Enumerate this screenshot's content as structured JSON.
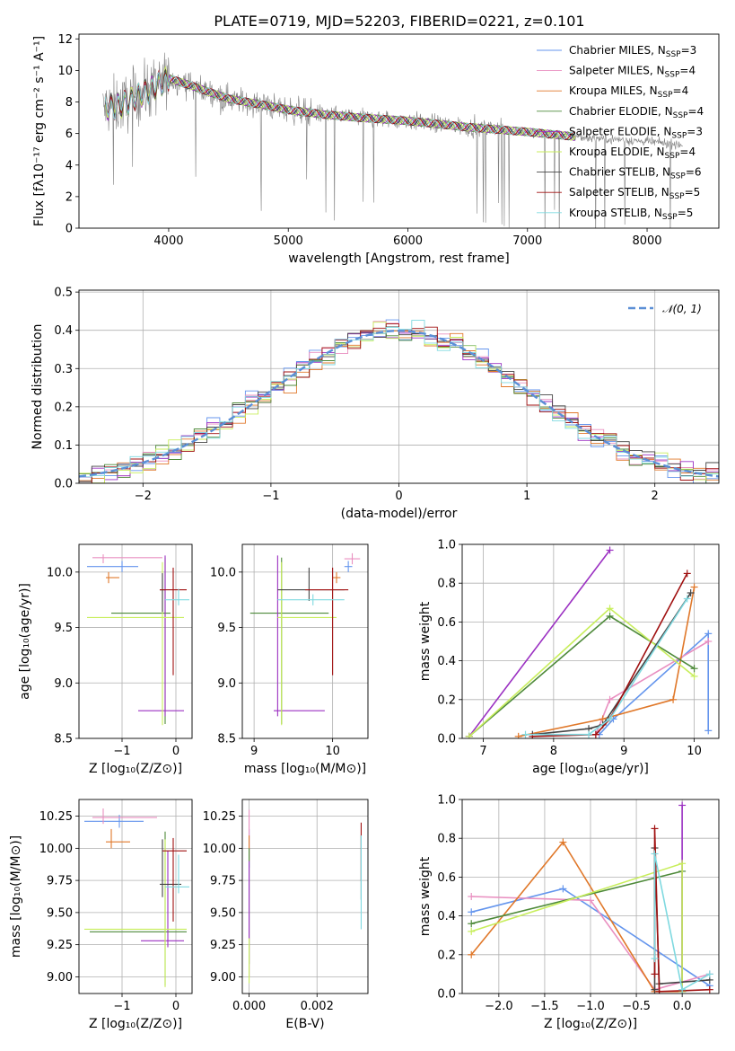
{
  "figure": {
    "title": "PLATE=0719, MJD=52203, FIBERID=0221, z=0.101"
  },
  "colors": {
    "data": "#808080",
    "grid": "#b0b0b0",
    "Chabrier MILES": "#6495ed",
    "Salpeter MILES": "#e98fc0",
    "Kroupa MILES": "#e0782a",
    "Chabrier ELODIE": "#4e8a3a",
    "Salpeter ELODIE": "#9b30c2",
    "Kroupa ELODIE": "#c8ee5c",
    "Chabrier STELIB": "#444444",
    "Salpeter STELIB": "#a01010",
    "Kroupa STELIB": "#7fd9e0"
  },
  "chart_data": [
    {
      "id": "spectrum",
      "type": "line",
      "xlabel": "wavelength [Angstrom, rest frame]",
      "ylabel": "Flux [fλ10⁻¹⁷ erg cm⁻² s⁻¹ A⁻¹]",
      "xlim": [
        3250,
        8600
      ],
      "ylim": [
        0,
        12.3
      ],
      "xticks": [
        "4000",
        "5000",
        "6000",
        "7000",
        "8000"
      ],
      "yticks": [
        "0",
        "2",
        "4",
        "6",
        "8",
        "10",
        "12"
      ],
      "legend_position": "top-right",
      "legend": [
        {
          "name": "Chabrier MILES",
          "nssp": "3"
        },
        {
          "name": "Salpeter MILES",
          "nssp": "4"
        },
        {
          "name": "Kroupa MILES",
          "nssp": "4"
        },
        {
          "name": "Chabrier ELODIE",
          "nssp": "4"
        },
        {
          "name": "Salpeter ELODIE",
          "nssp": "3"
        },
        {
          "name": "Kroupa ELODIE",
          "nssp": "4"
        },
        {
          "name": "Chabrier STELIB",
          "nssp": "6"
        },
        {
          "name": "Salpeter STELIB",
          "nssp": "5"
        },
        {
          "name": "Kroupa STELIB",
          "nssp": "5"
        }
      ],
      "continuum": {
        "x": [
          3450,
          3600,
          3800,
          4000,
          4200,
          4500,
          4800,
          5000,
          5300,
          5600,
          6000,
          6500,
          7000,
          7400,
          7800,
          8300
        ],
        "y": [
          7.6,
          7.8,
          8.6,
          9.5,
          9.0,
          8.2,
          7.8,
          7.5,
          7.2,
          7.0,
          6.8,
          6.4,
          6.1,
          5.8,
          5.6,
          5.3
        ]
      }
    },
    {
      "id": "residuals",
      "type": "line",
      "xlabel": "(data-model)/error",
      "ylabel": "Normed distribution",
      "xlim": [
        -2.5,
        2.5
      ],
      "ylim": [
        0,
        0.505
      ],
      "xticks": [
        "−2",
        "−1",
        "0",
        "1",
        "2"
      ],
      "yticks": [
        "0.0",
        "0.1",
        "0.2",
        "0.3",
        "0.4",
        "0.5"
      ],
      "legend_position": "top-right",
      "legend": [
        {
          "name": "𝒩(0, 1)"
        }
      ],
      "bin_width": 0.1,
      "mean": 0.0,
      "sigma": 1.0
    },
    {
      "id": "age-vs-Z",
      "type": "scatter",
      "xlabel": "Z [log₁₀(Z/Z⊙)]",
      "ylabel": "age  [log₁₀(age/yr)]",
      "xlim": [
        -1.8,
        0.3
      ],
      "ylim": [
        8.5,
        10.25
      ],
      "xticks": [
        "−1",
        "0"
      ],
      "yticks": [
        "8.5",
        "9.0",
        "9.5",
        "10.0"
      ],
      "points": [
        {
          "model": "Chabrier MILES",
          "x": -1.0,
          "y": 10.05,
          "xerr": [
            0.65,
            0.3
          ],
          "yerr": [
            0.05,
            0.05
          ]
        },
        {
          "model": "Salpeter MILES",
          "x": -1.35,
          "y": 10.13,
          "xerr": [
            0.2,
            1.1
          ],
          "yerr": [
            0.05,
            0.03
          ]
        },
        {
          "model": "Kroupa MILES",
          "x": -1.25,
          "y": 9.95,
          "xerr": [
            0.05,
            0.2
          ],
          "yerr": [
            0.05,
            0.05
          ]
        },
        {
          "model": "Chabrier ELODIE",
          "x": -0.2,
          "y": 9.63,
          "xerr": [
            1.0,
            0.1
          ],
          "yerr": [
            1.0,
            0.5
          ]
        },
        {
          "model": "Salpeter ELODIE",
          "x": -0.2,
          "y": 8.75,
          "xerr": [
            0.5,
            0.35
          ],
          "yerr": [
            0.05,
            1.4
          ]
        },
        {
          "model": "Kroupa ELODIE",
          "x": -0.25,
          "y": 9.59,
          "xerr": [
            1.4,
            0.4
          ],
          "yerr": [
            0.97,
            0.5
          ]
        },
        {
          "model": "Chabrier STELIB",
          "x": -0.25,
          "y": 9.84,
          "xerr": [
            0.05,
            0.05
          ],
          "yerr": [
            0.2,
            0.15
          ]
        },
        {
          "model": "Salpeter STELIB",
          "x": -0.05,
          "y": 9.84,
          "xerr": [
            0.25,
            0.25
          ],
          "yerr": [
            0.77,
            0.2
          ]
        },
        {
          "model": "Kroupa STELIB",
          "x": 0.05,
          "y": 9.75,
          "xerr": [
            0.25,
            0.2
          ],
          "yerr": [
            0.05,
            0.1
          ]
        }
      ]
    },
    {
      "id": "age-vs-mass",
      "type": "scatter",
      "xlabel": "mass [log₁₀(M/M⊙)]",
      "ylabel": "",
      "xlim": [
        8.85,
        10.45
      ],
      "ylim": [
        8.5,
        10.25
      ],
      "xticks": [
        "9",
        "10"
      ],
      "yticks": [
        "8.5",
        "9.0",
        "9.5",
        "10.0"
      ],
      "points": [
        {
          "model": "Chabrier MILES",
          "x": 10.2,
          "y": 10.05,
          "xerr": [
            0.05,
            0.05
          ],
          "yerr": [
            0.05,
            0.05
          ]
        },
        {
          "model": "Salpeter MILES",
          "x": 10.25,
          "y": 10.12,
          "xerr": [
            0.1,
            0.1
          ],
          "yerr": [
            0.05,
            0.05
          ]
        },
        {
          "model": "Kroupa MILES",
          "x": 10.05,
          "y": 9.95,
          "xerr": [
            0.05,
            0.05
          ],
          "yerr": [
            0.05,
            0.05
          ]
        },
        {
          "model": "Chabrier ELODIE",
          "x": 9.35,
          "y": 9.63,
          "xerr": [
            0.4,
            0.6
          ],
          "yerr": [
            1.0,
            0.5
          ]
        },
        {
          "model": "Salpeter ELODIE",
          "x": 9.3,
          "y": 8.75,
          "xerr": [
            0.05,
            0.6
          ],
          "yerr": [
            0.05,
            1.4
          ]
        },
        {
          "model": "Kroupa ELODIE",
          "x": 9.35,
          "y": 9.59,
          "xerr": [
            0.05,
            0.7
          ],
          "yerr": [
            0.97,
            0.5
          ]
        },
        {
          "model": "Chabrier STELIB",
          "x": 9.7,
          "y": 9.84,
          "xerr": [
            0.4,
            0.45
          ],
          "yerr": [
            0.1,
            0.2
          ]
        },
        {
          "model": "Salpeter STELIB",
          "x": 10.0,
          "y": 9.84,
          "xerr": [
            0.35,
            0.2
          ],
          "yerr": [
            0.77,
            0.2
          ]
        },
        {
          "model": "Kroupa STELIB",
          "x": 9.75,
          "y": 9.75,
          "xerr": [
            0.45,
            0.4
          ],
          "yerr": [
            0.05,
            0.05
          ]
        }
      ]
    },
    {
      "id": "weight-vs-age",
      "type": "line",
      "xlabel": "age  [log₁₀(age/yr)]",
      "ylabel": "mass weight",
      "xlim": [
        6.7,
        10.35
      ],
      "ylim": [
        0,
        1.0
      ],
      "xticks": [
        "7",
        "8",
        "9",
        "10"
      ],
      "yticks": [
        "0.0",
        "0.2",
        "0.4",
        "0.6",
        "0.8",
        "1.0"
      ],
      "series": [
        {
          "model": "Chabrier MILES",
          "x": [
            8.65,
            8.85,
            10.2,
            10.2
          ],
          "y": [
            0.02,
            0.1,
            0.54,
            0.04
          ]
        },
        {
          "model": "Salpeter MILES",
          "x": [
            8.6,
            8.8,
            10.2
          ],
          "y": [
            0.02,
            0.2,
            0.5
          ]
        },
        {
          "model": "Kroupa MILES",
          "x": [
            7.5,
            8.7,
            9.7,
            10.0
          ],
          "y": [
            0.01,
            0.1,
            0.2,
            0.78
          ]
        },
        {
          "model": "Chabrier ELODIE",
          "x": [
            6.8,
            8.8,
            10.0
          ],
          "y": [
            0.01,
            0.63,
            0.36
          ]
        },
        {
          "model": "Salpeter ELODIE",
          "x": [
            6.8,
            8.8
          ],
          "y": [
            0.01,
            0.97
          ]
        },
        {
          "model": "Kroupa ELODIE",
          "x": [
            6.8,
            8.8,
            10.0
          ],
          "y": [
            0.01,
            0.67,
            0.32
          ]
        },
        {
          "model": "Chabrier STELIB",
          "x": [
            7.7,
            8.5,
            8.7,
            9.95
          ],
          "y": [
            0.02,
            0.05,
            0.07,
            0.75
          ]
        },
        {
          "model": "Salpeter STELIB",
          "x": [
            7.7,
            8.6,
            8.8,
            9.9
          ],
          "y": [
            0.01,
            0.02,
            0.1,
            0.85
          ]
        },
        {
          "model": "Kroupa STELIB",
          "x": [
            7.6,
            8.5,
            8.8,
            9.9
          ],
          "y": [
            0.02,
            0.02,
            0.1,
            0.72
          ]
        }
      ]
    },
    {
      "id": "mass-vs-Z",
      "type": "scatter",
      "xlabel": "Z [log₁₀(Z/Z⊙)]",
      "ylabel": "mass [log₁₀(M/M⊙)]",
      "xlim": [
        -1.8,
        0.3
      ],
      "ylim": [
        8.87,
        10.38
      ],
      "xticks": [
        "−1",
        "0"
      ],
      "yticks": [
        "9.00",
        "9.25",
        "9.50",
        "9.75",
        "10.00",
        "10.25"
      ],
      "points": [
        {
          "model": "Chabrier MILES",
          "x": -1.05,
          "y": 10.21,
          "xerr": [
            0.65,
            0.45
          ],
          "yerr": [
            0.05,
            0.05
          ]
        },
        {
          "model": "Salpeter MILES",
          "x": -1.35,
          "y": 10.24,
          "xerr": [
            0.2,
            1.0
          ],
          "yerr": [
            0.05,
            0.07
          ]
        },
        {
          "model": "Kroupa MILES",
          "x": -1.2,
          "y": 10.05,
          "xerr": [
            0.1,
            0.35
          ],
          "yerr": [
            0.05,
            0.1
          ]
        },
        {
          "model": "Chabrier ELODIE",
          "x": -0.2,
          "y": 9.35,
          "xerr": [
            1.4,
            0.4
          ],
          "yerr": [
            0.42,
            0.78
          ]
        },
        {
          "model": "Salpeter ELODIE",
          "x": -0.15,
          "y": 9.28,
          "xerr": [
            0.5,
            0.3
          ],
          "yerr": [
            0.05,
            0.7
          ]
        },
        {
          "model": "Kroupa ELODIE",
          "x": -0.2,
          "y": 9.37,
          "xerr": [
            1.5,
            0.4
          ],
          "yerr": [
            0.45,
            0.7
          ]
        },
        {
          "model": "Chabrier STELIB",
          "x": -0.25,
          "y": 9.72,
          "xerr": [
            0.05,
            0.35
          ],
          "yerr": [
            0.1,
            0.35
          ]
        },
        {
          "model": "Salpeter STELIB",
          "x": -0.05,
          "y": 9.98,
          "xerr": [
            0.2,
            0.25
          ],
          "yerr": [
            0.55,
            0.1
          ]
        },
        {
          "model": "Kroupa STELIB",
          "x": 0.05,
          "y": 9.7,
          "xerr": [
            0.25,
            0.2
          ],
          "yerr": [
            0.05,
            0.25
          ]
        }
      ]
    },
    {
      "id": "mass-vs-ebv",
      "type": "scatter",
      "xlabel": "E(B-V)",
      "ylabel": "",
      "xlim": [
        -0.0002,
        0.0035
      ],
      "ylim": [
        8.87,
        10.38
      ],
      "xticks": [
        "0.000",
        "0.002"
      ],
      "yticks": [
        "9.00",
        "9.25",
        "9.50",
        "9.75",
        "10.00",
        "10.25"
      ],
      "points": [
        {
          "model": "Chabrier MILES",
          "x": 0.0,
          "y": 9.95,
          "xerr": [
            0,
            0
          ],
          "yerr": [
            0.1,
            0.2
          ]
        },
        {
          "model": "Salpeter MILES",
          "x": 0.0,
          "y": 10.1,
          "xerr": [
            0,
            0
          ],
          "yerr": [
            0.2,
            0.2
          ]
        },
        {
          "model": "Kroupa MILES",
          "x": 0.0,
          "y": 10.0,
          "xerr": [
            0,
            0
          ],
          "yerr": [
            0.1,
            0.1
          ]
        },
        {
          "model": "Chabrier ELODIE",
          "x": 0.0,
          "y": 9.4,
          "xerr": [
            0,
            0
          ],
          "yerr": [
            0.3,
            0.6
          ]
        },
        {
          "model": "Salpeter ELODIE",
          "x": 0.0,
          "y": 9.4,
          "xerr": [
            0,
            0
          ],
          "yerr": [
            0.4,
            0.5
          ]
        },
        {
          "model": "Kroupa ELODIE",
          "x": 0.0,
          "y": 9.1,
          "xerr": [
            0,
            0
          ],
          "yerr": [
            0.15,
            0.2
          ]
        },
        {
          "model": "Chabrier STELIB",
          "x": 0.0033,
          "y": 9.8,
          "xerr": [
            0,
            0
          ],
          "yerr": [
            0.2,
            0.3
          ]
        },
        {
          "model": "Salpeter STELIB",
          "x": 0.0033,
          "y": 9.95,
          "xerr": [
            0,
            0
          ],
          "yerr": [
            0.2,
            0.25
          ]
        },
        {
          "model": "Kroupa STELIB",
          "x": 0.0033,
          "y": 9.7,
          "xerr": [
            0,
            0
          ],
          "yerr": [
            0.33,
            0.4
          ]
        }
      ]
    },
    {
      "id": "weight-vs-Z",
      "type": "line",
      "xlabel": "Z [log₁₀(Z/Z⊙)]",
      "ylabel": "mass weight",
      "xlim": [
        -2.4,
        0.4
      ],
      "ylim": [
        0,
        1.0
      ],
      "xticks": [
        "−2.0",
        "−1.5",
        "−1.0",
        "−0.5",
        "0.0"
      ],
      "yticks": [
        "0.0",
        "0.2",
        "0.4",
        "0.6",
        "0.8",
        "1.0"
      ],
      "series": [
        {
          "model": "Chabrier MILES",
          "x": [
            -2.3,
            -1.3,
            0.3
          ],
          "y": [
            0.42,
            0.54,
            0.04
          ]
        },
        {
          "model": "Salpeter MILES",
          "x": [
            -2.3,
            -1.0,
            -0.3,
            0.3
          ],
          "y": [
            0.5,
            0.48,
            0.02,
            0.1
          ]
        },
        {
          "model": "Kroupa MILES",
          "x": [
            -2.3,
            -1.3,
            -0.3,
            0.0
          ],
          "y": [
            0.2,
            0.78,
            0.01,
            0.01
          ]
        },
        {
          "model": "Chabrier ELODIE",
          "x": [
            -2.3,
            0.0,
            0.0
          ],
          "y": [
            0.36,
            0.63,
            0.01
          ]
        },
        {
          "model": "Salpeter ELODIE",
          "x": [
            0.0,
            0.0
          ],
          "y": [
            0.01,
            0.97
          ]
        },
        {
          "model": "Kroupa ELODIE",
          "x": [
            -2.3,
            0.0,
            0.0
          ],
          "y": [
            0.32,
            0.67,
            0.01
          ]
        },
        {
          "model": "Chabrier STELIB",
          "x": [
            -0.3,
            -0.3,
            -0.25,
            0.3
          ],
          "y": [
            0.02,
            0.75,
            0.05,
            0.07
          ]
        },
        {
          "model": "Salpeter STELIB",
          "x": [
            -0.3,
            -0.3,
            -0.25,
            0.3
          ],
          "y": [
            0.1,
            0.85,
            0.01,
            0.02
          ]
        },
        {
          "model": "Kroupa STELIB",
          "x": [
            -0.3,
            -0.3,
            0.0,
            0.3
          ],
          "y": [
            0.18,
            0.72,
            0.02,
            0.1
          ]
        }
      ]
    }
  ]
}
